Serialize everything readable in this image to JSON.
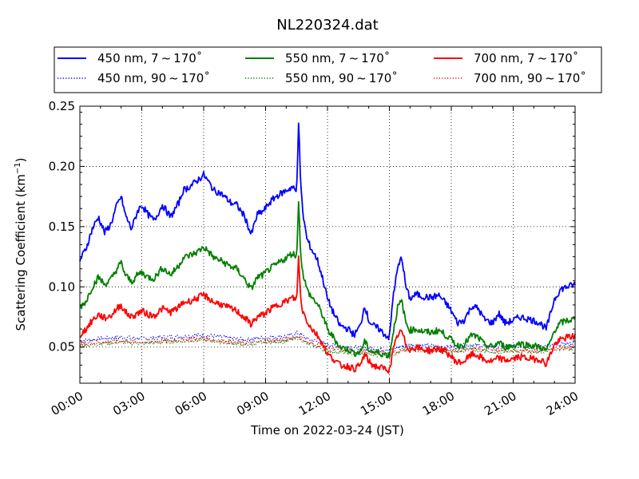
{
  "chart_data": {
    "type": "line",
    "title": "NL220324.dat",
    "xlabel": "Time on 2022-03-24 (JST)",
    "ylabel_main": "Scattering Coefficient (km",
    "ylabel_sup": "−1",
    "ylabel_close": ")",
    "xlim": [
      0,
      24
    ],
    "ylim": [
      0.02,
      0.25
    ],
    "x_ticks": [
      0,
      3,
      6,
      9,
      12,
      15,
      18,
      21,
      24
    ],
    "x_tick_labels": [
      "00:00",
      "03:00",
      "06:00",
      "09:00",
      "12:00",
      "15:00",
      "18:00",
      "21:00",
      "24:00"
    ],
    "y_ticks": [
      0.05,
      0.1,
      0.15,
      0.2,
      0.25
    ],
    "y_tick_labels": [
      "0.05",
      "0.10",
      "0.15",
      "0.20",
      "0.25"
    ],
    "grid": true,
    "legend_placement": "top-center",
    "x_units": "hours since 00:00",
    "series": [
      {
        "name": "450 nm, 7 ~ 170˚",
        "color": "#0000ff",
        "style": "solid",
        "x": [
          0,
          0.3,
          0.6,
          0.9,
          1.2,
          1.5,
          1.8,
          2.0,
          2.2,
          2.5,
          2.8,
          3.0,
          3.3,
          3.6,
          4.0,
          4.4,
          4.8,
          5.0,
          5.3,
          5.6,
          6.0,
          6.2,
          6.5,
          6.8,
          7.0,
          7.3,
          7.6,
          8.0,
          8.3,
          8.6,
          8.9,
          9.2,
          9.5,
          9.8,
          10.0,
          10.3,
          10.5,
          10.6,
          10.7,
          10.8,
          11.0,
          11.2,
          11.5,
          11.8,
          12.0,
          12.3,
          12.6,
          13.0,
          13.3,
          13.6,
          13.8,
          14.0,
          14.2,
          14.5,
          14.8,
          15.0,
          15.2,
          15.4,
          15.6,
          15.8,
          16.0,
          16.3,
          16.6,
          17.0,
          17.4,
          17.8,
          18.0,
          18.3,
          18.6,
          19.0,
          19.3,
          19.6,
          20.0,
          20.3,
          20.6,
          21.0,
          21.3,
          21.6,
          22.0,
          22.3,
          22.6,
          22.8,
          23.0,
          23.3,
          23.6,
          24.0
        ],
        "y": [
          0.122,
          0.132,
          0.148,
          0.158,
          0.145,
          0.152,
          0.168,
          0.175,
          0.16,
          0.148,
          0.163,
          0.168,
          0.16,
          0.155,
          0.168,
          0.158,
          0.17,
          0.18,
          0.183,
          0.187,
          0.193,
          0.188,
          0.18,
          0.178,
          0.175,
          0.17,
          0.168,
          0.158,
          0.143,
          0.16,
          0.163,
          0.17,
          0.175,
          0.178,
          0.18,
          0.183,
          0.178,
          0.238,
          0.185,
          0.162,
          0.14,
          0.132,
          0.123,
          0.105,
          0.09,
          0.078,
          0.068,
          0.065,
          0.06,
          0.068,
          0.085,
          0.072,
          0.068,
          0.065,
          0.06,
          0.058,
          0.095,
          0.115,
          0.125,
          0.1,
          0.09,
          0.094,
          0.092,
          0.091,
          0.093,
          0.085,
          0.08,
          0.07,
          0.072,
          0.084,
          0.082,
          0.073,
          0.07,
          0.078,
          0.07,
          0.072,
          0.075,
          0.074,
          0.072,
          0.07,
          0.065,
          0.077,
          0.09,
          0.098,
          0.1,
          0.102
        ]
      },
      {
        "name": "550 nm, 7 ~ 170˚",
        "color": "#008000",
        "style": "solid",
        "x": [
          0,
          0.3,
          0.6,
          0.9,
          1.2,
          1.5,
          1.8,
          2.0,
          2.2,
          2.5,
          2.8,
          3.0,
          3.3,
          3.6,
          4.0,
          4.4,
          4.8,
          5.0,
          5.3,
          5.6,
          6.0,
          6.2,
          6.5,
          6.8,
          7.0,
          7.3,
          7.6,
          8.0,
          8.3,
          8.6,
          8.9,
          9.2,
          9.5,
          9.8,
          10.0,
          10.3,
          10.5,
          10.6,
          10.7,
          10.8,
          11.0,
          11.2,
          11.5,
          11.8,
          12.0,
          12.3,
          12.6,
          13.0,
          13.3,
          13.6,
          13.8,
          14.0,
          14.2,
          14.5,
          14.8,
          15.0,
          15.2,
          15.4,
          15.6,
          15.8,
          16.0,
          16.3,
          16.6,
          17.0,
          17.4,
          17.8,
          18.0,
          18.3,
          18.6,
          19.0,
          19.3,
          19.6,
          20.0,
          20.3,
          20.6,
          21.0,
          21.3,
          21.6,
          22.0,
          22.3,
          22.6,
          22.8,
          23.0,
          23.3,
          23.6,
          24.0
        ],
        "y": [
          0.083,
          0.088,
          0.1,
          0.108,
          0.102,
          0.106,
          0.115,
          0.12,
          0.11,
          0.104,
          0.11,
          0.112,
          0.108,
          0.107,
          0.116,
          0.11,
          0.118,
          0.124,
          0.126,
          0.128,
          0.133,
          0.13,
          0.124,
          0.122,
          0.12,
          0.117,
          0.115,
          0.106,
          0.098,
          0.108,
          0.11,
          0.115,
          0.118,
          0.122,
          0.124,
          0.128,
          0.125,
          0.17,
          0.128,
          0.112,
          0.098,
          0.092,
          0.086,
          0.075,
          0.064,
          0.058,
          0.05,
          0.048,
          0.045,
          0.046,
          0.055,
          0.048,
          0.046,
          0.045,
          0.044,
          0.043,
          0.064,
          0.083,
          0.088,
          0.07,
          0.064,
          0.065,
          0.063,
          0.062,
          0.064,
          0.059,
          0.056,
          0.051,
          0.052,
          0.06,
          0.058,
          0.052,
          0.05,
          0.054,
          0.05,
          0.051,
          0.053,
          0.052,
          0.051,
          0.05,
          0.047,
          0.054,
          0.064,
          0.07,
          0.072,
          0.073
        ]
      },
      {
        "name": "700 nm, 7 ~ 170˚",
        "color": "#ff0000",
        "style": "solid",
        "x": [
          0,
          0.3,
          0.6,
          0.9,
          1.2,
          1.5,
          1.8,
          2.0,
          2.2,
          2.5,
          2.8,
          3.0,
          3.3,
          3.6,
          4.0,
          4.4,
          4.8,
          5.0,
          5.3,
          5.6,
          6.0,
          6.2,
          6.5,
          6.8,
          7.0,
          7.3,
          7.6,
          8.0,
          8.3,
          8.6,
          8.9,
          9.2,
          9.5,
          9.8,
          10.0,
          10.3,
          10.5,
          10.6,
          10.7,
          10.8,
          11.0,
          11.2,
          11.5,
          11.8,
          12.0,
          12.3,
          12.6,
          13.0,
          13.3,
          13.6,
          13.8,
          14.0,
          14.2,
          14.5,
          14.8,
          15.0,
          15.2,
          15.4,
          15.6,
          15.8,
          16.0,
          16.3,
          16.6,
          17.0,
          17.4,
          17.8,
          18.0,
          18.3,
          18.6,
          19.0,
          19.3,
          19.6,
          20.0,
          20.3,
          20.6,
          21.0,
          21.3,
          21.6,
          22.0,
          22.3,
          22.6,
          22.8,
          23.0,
          23.3,
          23.6,
          24.0
        ],
        "y": [
          0.06,
          0.065,
          0.072,
          0.077,
          0.074,
          0.076,
          0.082,
          0.085,
          0.079,
          0.075,
          0.078,
          0.08,
          0.077,
          0.076,
          0.082,
          0.079,
          0.083,
          0.087,
          0.088,
          0.09,
          0.093,
          0.091,
          0.087,
          0.086,
          0.084,
          0.082,
          0.08,
          0.074,
          0.069,
          0.075,
          0.077,
          0.081,
          0.084,
          0.087,
          0.088,
          0.091,
          0.089,
          0.124,
          0.09,
          0.08,
          0.072,
          0.066,
          0.06,
          0.052,
          0.044,
          0.04,
          0.035,
          0.034,
          0.032,
          0.035,
          0.044,
          0.038,
          0.035,
          0.033,
          0.032,
          0.031,
          0.048,
          0.06,
          0.063,
          0.052,
          0.048,
          0.05,
          0.048,
          0.047,
          0.049,
          0.045,
          0.042,
          0.037,
          0.038,
          0.044,
          0.043,
          0.039,
          0.038,
          0.041,
          0.039,
          0.04,
          0.042,
          0.041,
          0.04,
          0.04,
          0.036,
          0.044,
          0.052,
          0.056,
          0.058,
          0.059
        ]
      },
      {
        "name": "450 nm, 90 ~ 170˚",
        "color": "#0000ff",
        "style": "dotted",
        "x": [
          0,
          1,
          2,
          3,
          4,
          5,
          6,
          7,
          8,
          9,
          10,
          10.6,
          11,
          12,
          13,
          14,
          15,
          16,
          17,
          18,
          19,
          20,
          21,
          22,
          23,
          24
        ],
        "y": [
          0.055,
          0.057,
          0.058,
          0.057,
          0.058,
          0.059,
          0.06,
          0.058,
          0.056,
          0.058,
          0.059,
          0.062,
          0.057,
          0.052,
          0.05,
          0.049,
          0.048,
          0.052,
          0.051,
          0.05,
          0.052,
          0.05,
          0.051,
          0.05,
          0.052,
          0.053
        ]
      },
      {
        "name": "550 nm, 90 ~ 170˚",
        "color": "#008000",
        "style": "dotted",
        "x": [
          0,
          1,
          2,
          3,
          4,
          5,
          6,
          7,
          8,
          9,
          10,
          10.6,
          11,
          12,
          13,
          14,
          15,
          16,
          17,
          18,
          19,
          20,
          21,
          22,
          23,
          24
        ],
        "y": [
          0.051,
          0.053,
          0.054,
          0.053,
          0.054,
          0.055,
          0.056,
          0.054,
          0.052,
          0.054,
          0.055,
          0.058,
          0.053,
          0.047,
          0.045,
          0.044,
          0.043,
          0.048,
          0.047,
          0.046,
          0.048,
          0.046,
          0.047,
          0.046,
          0.048,
          0.049
        ]
      },
      {
        "name": "700 nm, 90 ~ 170˚",
        "color": "#ff0000",
        "style": "dotted",
        "x": [
          0,
          1,
          2,
          3,
          4,
          5,
          6,
          7,
          8,
          9,
          10,
          10.6,
          11,
          12,
          13,
          14,
          15,
          16,
          17,
          18,
          19,
          20,
          21,
          22,
          23,
          24
        ],
        "y": [
          0.052,
          0.054,
          0.055,
          0.054,
          0.055,
          0.056,
          0.057,
          0.055,
          0.053,
          0.055,
          0.056,
          0.059,
          0.054,
          0.049,
          0.047,
          0.046,
          0.045,
          0.049,
          0.048,
          0.047,
          0.049,
          0.047,
          0.048,
          0.047,
          0.049,
          0.05
        ]
      }
    ]
  }
}
